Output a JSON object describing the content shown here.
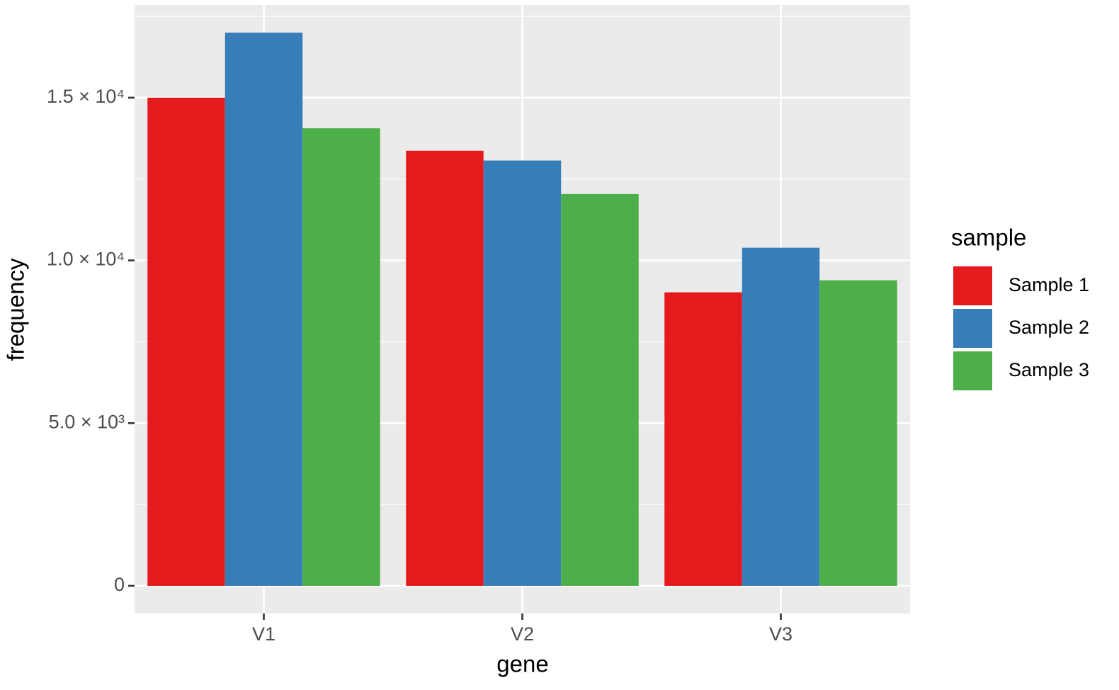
{
  "chart_data": {
    "type": "bar",
    "x_label": "gene",
    "y_label": "frequency",
    "legend_title": "sample",
    "categories": [
      "V1",
      "V2",
      "V3"
    ],
    "series": [
      {
        "name": "Sample 1",
        "color": "#e41a1c",
        "values": [
          15000,
          13370,
          9020
        ]
      },
      {
        "name": "Sample 2",
        "color": "#377eb8",
        "values": [
          17000,
          13070,
          10390
        ]
      },
      {
        "name": "Sample 3",
        "color": "#4daf4a",
        "values": [
          14060,
          12040,
          9390
        ]
      }
    ],
    "ylim": [
      -850,
      17850
    ],
    "yticks": [
      0,
      {
        "value": 5000,
        "label": "5.0 × 10³"
      },
      {
        "value": 10000,
        "label": "1.0 × 10⁴"
      },
      {
        "value": 15000,
        "label": "1.5 × 10⁴"
      }
    ],
    "minor_yticks": [
      2500,
      7500,
      12500,
      17500
    ],
    "grid": true,
    "legend_position": "right"
  }
}
